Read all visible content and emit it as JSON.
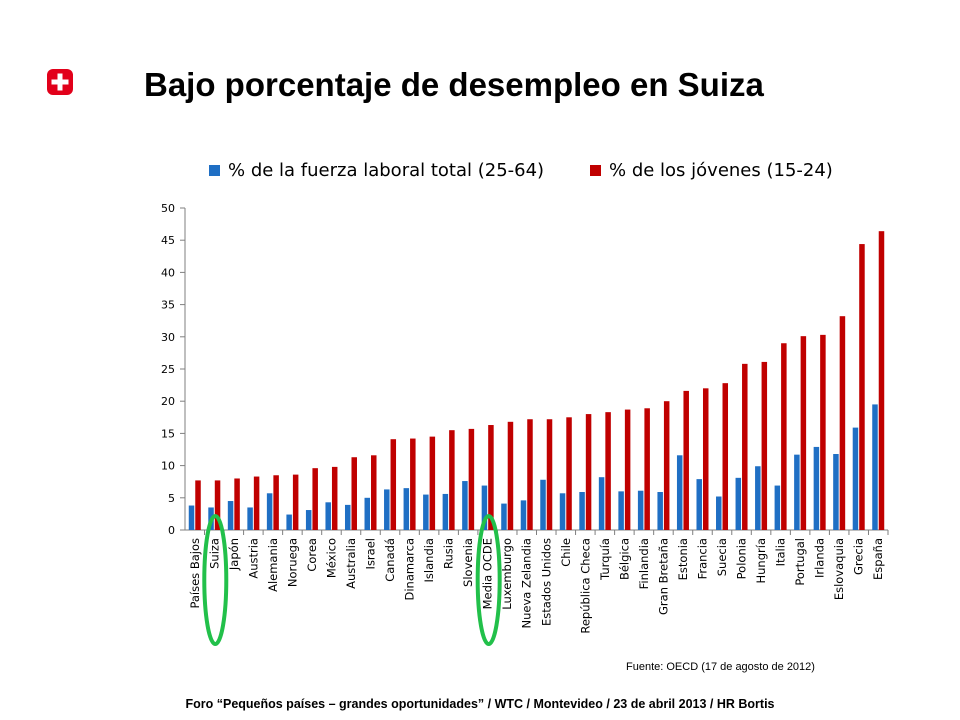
{
  "slide": {
    "title": "Bajo porcentaje de desempleo en Suiza",
    "source": "Fuente: OECD  (17 de agosto de 2012)",
    "footer": "Foro “Pequeños países – grandes oportunidades” / WTC / Montevideo / 23 de abril 2013 / HR Bortis"
  },
  "colors": {
    "series1": "#1f6fc4",
    "series2": "#c00000",
    "highlight": "#22c04a",
    "logo_red": "#e2001a",
    "axis": "#7f7f7f"
  },
  "highlighted_categories": [
    "Suiza",
    "Media OCDE"
  ],
  "chart_data": {
    "type": "bar",
    "title": "",
    "xlabel": "",
    "ylabel": "",
    "ylim": [
      0,
      50
    ],
    "yticks": [
      0,
      5,
      10,
      15,
      20,
      25,
      30,
      35,
      40,
      45,
      50
    ],
    "grid": false,
    "legend_position": "top",
    "categories": [
      "Países Bajos",
      "Suiza",
      "Japón",
      "Austria",
      "Alemania",
      "Noruega",
      "Corea",
      "México",
      "Australia",
      "Israel",
      "Canadá",
      "Dinamarca",
      "Islandia",
      "Rusia",
      "Slovenia",
      "Media OCDE",
      "Luxemburgo",
      "Nueva Zelandia",
      "Estados Unidos",
      "Chile",
      "República Checa",
      "Turquía",
      "Bélgica",
      "Finlandia",
      "Gran Bretaña",
      "Estonia",
      "Francia",
      "Suecia",
      "Polonia",
      "Hungría",
      "Italia",
      "Portugal",
      "Irlanda",
      "Eslovaquia",
      "Grecia",
      "España"
    ],
    "series": [
      {
        "name": "% de la fuerza laboral total (25-64)",
        "values": [
          3.8,
          3.5,
          4.5,
          3.5,
          5.7,
          2.4,
          3.1,
          4.3,
          3.9,
          5.0,
          6.3,
          6.5,
          5.5,
          5.6,
          7.6,
          6.9,
          4.1,
          4.6,
          7.8,
          5.7,
          5.9,
          8.2,
          6.0,
          6.1,
          5.9,
          11.6,
          7.9,
          5.2,
          8.1,
          9.9,
          6.9,
          11.7,
          12.9,
          11.8,
          15.9,
          19.5
        ]
      },
      {
        "name": "% de los jóvenes (15-24)",
        "values": [
          7.7,
          7.7,
          8.0,
          8.3,
          8.5,
          8.6,
          9.6,
          9.8,
          11.3,
          11.6,
          14.1,
          14.2,
          14.5,
          15.5,
          15.7,
          16.3,
          16.8,
          17.2,
          17.2,
          17.5,
          18.0,
          18.3,
          18.7,
          18.9,
          20.0,
          21.6,
          22.0,
          22.8,
          25.8,
          26.1,
          29.0,
          30.1,
          30.3,
          33.2,
          44.4,
          46.4
        ]
      }
    ]
  }
}
